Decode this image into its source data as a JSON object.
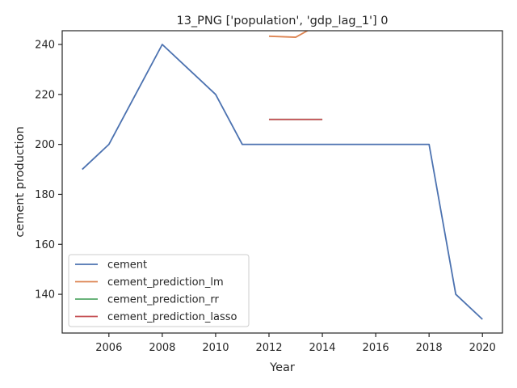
{
  "chart_data": {
    "type": "line",
    "title": "13_PNG ['population', 'gdp_lag_1'] 0",
    "xlabel": "Year",
    "ylabel": "cement production",
    "xlim": [
      2004.25,
      2020.75
    ],
    "ylim": [
      124.5,
      245.5
    ],
    "xticks": [
      2006,
      2008,
      2010,
      2012,
      2014,
      2016,
      2018,
      2020
    ],
    "yticks": [
      140,
      160,
      180,
      200,
      220,
      240
    ],
    "grid": false,
    "legend_position": "lower-left",
    "series": [
      {
        "name": "cement",
        "color": "#4c72b0",
        "x": [
          2005,
          2006,
          2007,
          2008,
          2009,
          2010,
          2011,
          2012,
          2013,
          2014,
          2015,
          2016,
          2017,
          2018,
          2019,
          2020
        ],
        "y": [
          190,
          200,
          220,
          240,
          230,
          220,
          200,
          200,
          200,
          200,
          200,
          200,
          200,
          200,
          140,
          130
        ]
      },
      {
        "name": "cement_prediction_lm",
        "color": "#dd8452",
        "x": [
          2012,
          2013,
          2014
        ],
        "y": [
          243.3,
          242.9,
          248.8
        ]
      },
      {
        "name": "cement_prediction_rr",
        "color": "#55a868",
        "x": [
          2012,
          2013,
          2014
        ],
        "y": [
          210.0,
          210.0,
          210.0
        ]
      },
      {
        "name": "cement_prediction_lasso",
        "color": "#c44e52",
        "x": [
          2012,
          2013,
          2014
        ],
        "y": [
          210.0,
          210.0,
          210.0
        ]
      }
    ]
  }
}
